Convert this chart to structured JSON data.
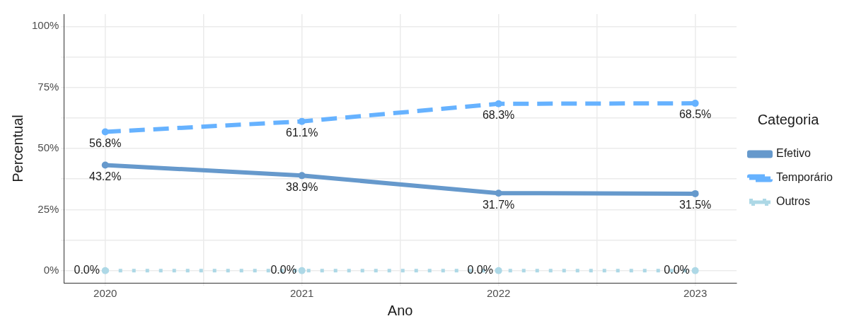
{
  "chart_data": {
    "type": "line",
    "xlabel": "Ano",
    "ylabel": "Percentual",
    "legend_title": "Categoria",
    "legend": "right",
    "grid": true,
    "marker": "circle",
    "x": [
      2020,
      2021,
      2022,
      2023
    ],
    "xlim": [
      2019.79,
      2023.21
    ],
    "xticks": [
      2020,
      {
        "value": 2020.5,
        "label": null
      },
      2021,
      {
        "value": 2021.5,
        "label": null
      },
      2022,
      {
        "value": 2022.5,
        "label": null
      },
      2023
    ],
    "ylim": [
      -5,
      105
    ],
    "yticks": [
      {
        "value": 0,
        "label": "0%"
      },
      {
        "value": 12.5,
        "label": null
      },
      {
        "value": 25,
        "label": "25%"
      },
      {
        "value": 37.5,
        "label": null
      },
      {
        "value": 50,
        "label": "50%"
      },
      {
        "value": 62.5,
        "label": null
      },
      {
        "value": 75,
        "label": "75%"
      },
      {
        "value": 87.5,
        "label": null
      },
      {
        "value": 100,
        "label": "100%"
      }
    ],
    "series": [
      {
        "name": "Efetivo",
        "color": "#6699cc",
        "line_style": "solid",
        "values": [
          43.2,
          38.9,
          31.7,
          31.5
        ],
        "value_labels": [
          "43.2%",
          "38.9%",
          "31.7%",
          "31.5%"
        ]
      },
      {
        "name": "Temporário",
        "color": "#66b2ff",
        "line_style": "dashed",
        "values": [
          56.8,
          61.1,
          68.3,
          68.5
        ],
        "value_labels": [
          "56.8%",
          "61.1%",
          "68.3%",
          "68.5%"
        ]
      },
      {
        "name": "Outros",
        "color": "#add8e6",
        "line_style": "dotted",
        "values": [
          0,
          0,
          0,
          0
        ],
        "value_labels": [
          "0.0%",
          "0.0%",
          "0.0%",
          "0.0%"
        ]
      }
    ]
  }
}
